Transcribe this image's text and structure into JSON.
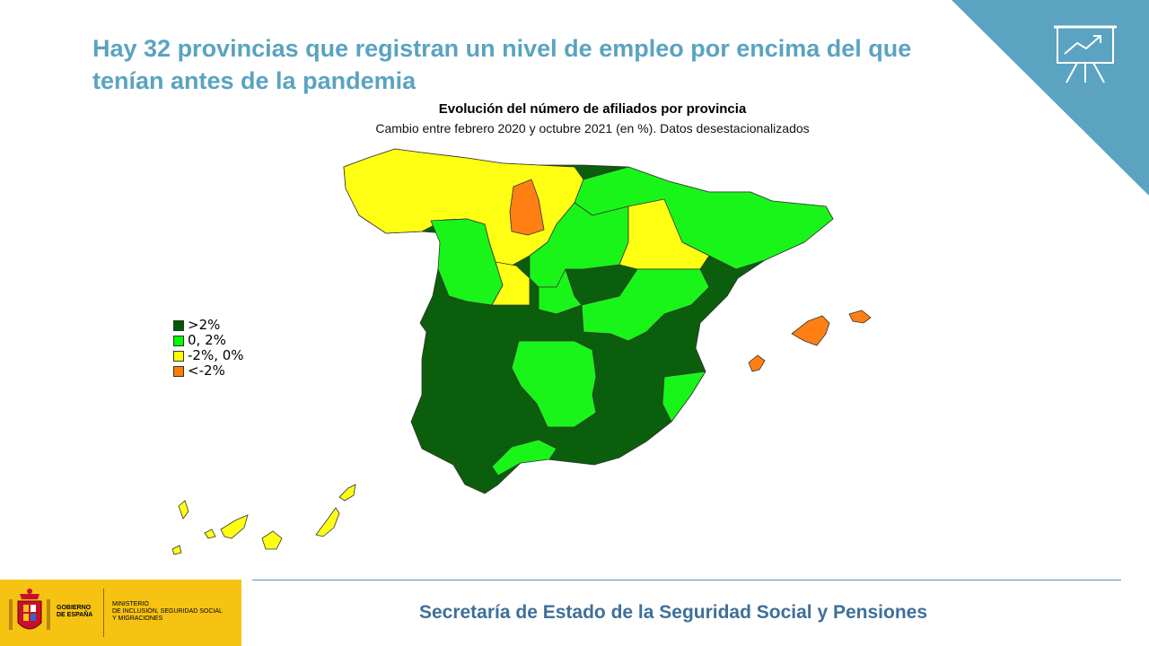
{
  "header": {
    "title_line1": "Hay 32 provincias que registran un nivel de empleo por encima del que",
    "title_line2": "tenían antes de la pandemia"
  },
  "map": {
    "title": "Evolución del número de afiliados por provincia",
    "subtitle": "Cambio entre febrero 2020 y octubre 2021 (en %). Datos desestacionalizados"
  },
  "legend": [
    {
      "label": ">2%",
      "color": "#005a00"
    },
    {
      "label": "0, 2%",
      "color": "#00ff00"
    },
    {
      "label": "-2%, 0%",
      "color": "#ffff00"
    },
    {
      "label": "<-2%",
      "color": "#ff7f00"
    }
  ],
  "colors": {
    "dark_green": "#0b5e0b",
    "light_green": "#19f519",
    "yellow": "#ffff14",
    "orange": "#ff7f14",
    "accent": "#5aa3c1",
    "footer": "#3f6f9a"
  },
  "footer": {
    "text": "Secretaría de Estado de la Seguridad Social y Pensiones",
    "gov_line1": "GOBIERNO",
    "gov_line2": "DE ESPAÑA",
    "ministry_line1": "MINISTERIO",
    "ministry_line2": "DE INCLUSIÓN, SEGURIDAD SOCIAL",
    "ministry_line3": "Y MIGRACIONES"
  },
  "icons": {
    "corner": "presentation-chart-icon",
    "crest": "coat-of-arms-icon"
  }
}
